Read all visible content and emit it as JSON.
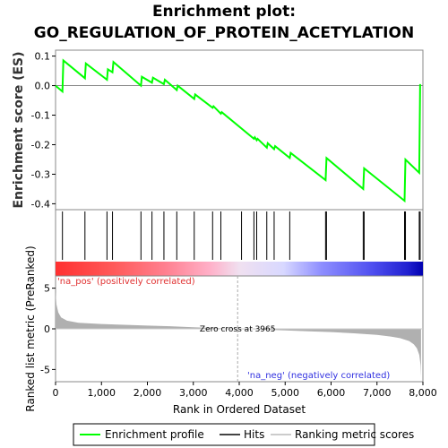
{
  "title_line1": "Enrichment plot:",
  "title_line2": "GO_REGULATION_OF_PROTEIN_ACETYLATION",
  "chart_data": [
    {
      "type": "line",
      "name": "enrichment-score-panel",
      "ylabel": "Enrichment score (ES)",
      "ylim": [
        -0.42,
        0.12
      ],
      "yticks": [
        0.1,
        0.0,
        -0.1,
        -0.2,
        -0.3,
        -0.4
      ],
      "ytick_labels": [
        "0.1",
        "0.0",
        "-0.1",
        "-0.2",
        "-0.3",
        "-0.4"
      ],
      "xlim": [
        0,
        8000
      ],
      "grid": false,
      "line_color": "#00ff00",
      "series": [
        {
          "name": "Enrichment profile",
          "x": [
            0,
            150,
            170,
            640,
            660,
            1120,
            1140,
            1240,
            1260,
            1860,
            1880,
            2100,
            2120,
            2360,
            2380,
            2640,
            2660,
            3020,
            3040,
            3420,
            3440,
            3600,
            3620,
            4320,
            4340,
            4380,
            4400,
            4600,
            4620,
            4760,
            4780,
            5100,
            5120,
            5880,
            5900,
            6700,
            6720,
            7600,
            7620,
            7920,
            7940
          ],
          "y": [
            0.0,
            -0.02,
            0.085,
            0.025,
            0.075,
            0.02,
            0.055,
            0.045,
            0.08,
            0.0,
            0.03,
            0.01,
            0.027,
            0.005,
            0.02,
            -0.015,
            0.0,
            -0.045,
            -0.03,
            -0.075,
            -0.07,
            -0.095,
            -0.09,
            -0.18,
            -0.175,
            -0.185,
            -0.18,
            -0.21,
            -0.195,
            -0.215,
            -0.205,
            -0.245,
            -0.228,
            -0.32,
            -0.245,
            -0.35,
            -0.28,
            -0.39,
            -0.25,
            -0.295,
            0.005
          ]
        }
      ]
    },
    {
      "type": "bar",
      "name": "hits-panel",
      "hits_x": [
        150,
        640,
        1120,
        1240,
        1860,
        2100,
        2360,
        2640,
        3020,
        3420,
        3600,
        4050,
        4320,
        4380,
        4600,
        4760,
        5100,
        5880,
        5900,
        6700,
        6720,
        7600,
        7620,
        7920,
        7940
      ]
    },
    {
      "type": "area",
      "name": "ranked-list-panel",
      "xlabel": "Rank in Ordered Dataset",
      "ylabel": "Ranked list metric (PreRanked)",
      "xlim": [
        0,
        8000
      ],
      "ylim": [
        -6.5,
        6.5
      ],
      "yticks": [
        5,
        0,
        -5
      ],
      "ytick_labels": [
        "5",
        "0",
        "-5"
      ],
      "xticks": [
        0,
        1000,
        2000,
        3000,
        4000,
        5000,
        6000,
        7000,
        8000
      ],
      "xtick_labels": [
        "0",
        "1,000",
        "2,000",
        "3,000",
        "4,000",
        "5,000",
        "6,000",
        "7,000",
        "8,000"
      ],
      "x": [
        0,
        20,
        60,
        120,
        250,
        500,
        1000,
        1500,
        2000,
        2500,
        3000,
        3500,
        3965,
        4500,
        5000,
        5500,
        6000,
        6500,
        7000,
        7300,
        7500,
        7700,
        7800,
        7870,
        7920,
        7950,
        7960
      ],
      "y": [
        4.6,
        3.0,
        2.0,
        1.4,
        1.0,
        0.75,
        0.6,
        0.5,
        0.4,
        0.32,
        0.2,
        0.1,
        0.0,
        -0.1,
        -0.2,
        -0.3,
        -0.4,
        -0.55,
        -0.75,
        -0.95,
        -1.15,
        -1.5,
        -1.9,
        -2.4,
        -3.2,
        -4.5,
        -5.9
      ],
      "zero_cross_label": "Zero cross at 3965",
      "zero_cross_x": 3965,
      "pos_label": "'na_pos' (positively correlated)",
      "neg_label": "'na_neg' (negatively correlated)"
    }
  ],
  "legend": {
    "items": [
      {
        "label": "Enrichment profile",
        "color": "#00ff00"
      },
      {
        "label": "Hits",
        "color": "#444444"
      },
      {
        "label": "Ranking metric scores",
        "color": "#cccccc"
      }
    ]
  },
  "colors": {
    "profile": "#00ff00",
    "hit": "#000000",
    "metric_fill": "#b0b0b0",
    "zero_line": "#aaaaaa"
  }
}
